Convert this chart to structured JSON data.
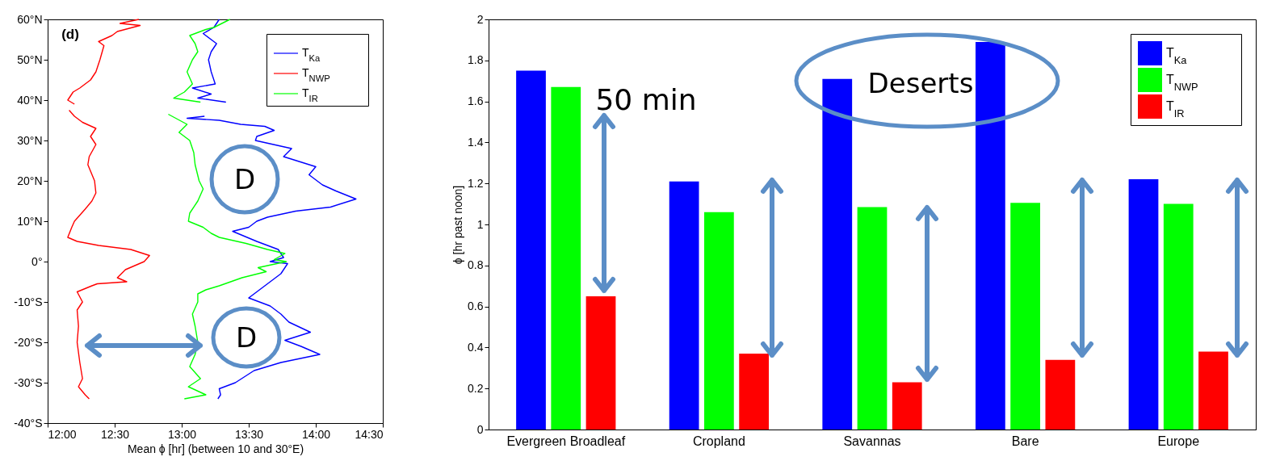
{
  "chart_data": [
    {
      "type": "line",
      "xlabel": "Mean ϕ [hr] (between 10 and 30°E)",
      "annotations": [
        "(d)",
        "D",
        "D"
      ],
      "xlim": [
        12,
        14.5
      ],
      "xticks": [
        {
          "value": 12,
          "label": "12:00"
        },
        {
          "value": 12.5,
          "label": "12:30"
        },
        {
          "value": 13,
          "label": "13:00"
        },
        {
          "value": 13.5,
          "label": "13:30"
        },
        {
          "value": 14,
          "label": "14:00"
        },
        {
          "value": 14.5,
          "label": "14:30"
        }
      ],
      "ylim": [
        -40,
        60
      ],
      "yticks": [
        {
          "value": -40,
          "label": "-40°S"
        },
        {
          "value": -30,
          "label": "-30°S"
        },
        {
          "value": -20,
          "label": "-20°S"
        },
        {
          "value": -10,
          "label": "-10°S"
        },
        {
          "value": 0,
          "label": "0°"
        },
        {
          "value": 10,
          "label": "10°N"
        },
        {
          "value": 20,
          "label": "20°N"
        },
        {
          "value": 30,
          "label": "30°N"
        },
        {
          "value": 40,
          "label": "40°N"
        },
        {
          "value": 50,
          "label": "50°N"
        },
        {
          "value": 60,
          "label": "60°N"
        }
      ],
      "legend": "top right",
      "grid": false,
      "series": [
        {
          "name": "T$_{Ka}$",
          "color": "#0000ff",
          "x": [
            13.28,
            13.24,
            13.16,
            13.26,
            13.22,
            13.2,
            13.22,
            13.25,
            13.08,
            13.22,
            13.12,
            13.33,
            13.25,
            13.17,
            13.04,
            13.28,
            13.44,
            13.62,
            13.69,
            13.56,
            13.55,
            13.82,
            13.76,
            14.0,
            13.95,
            14.05,
            14.15,
            14.3,
            14.11,
            13.85,
            13.64,
            13.56,
            13.5,
            13.38,
            13.56,
            13.72,
            13.76,
            13.66,
            13.79,
            13.74,
            13.62,
            13.56,
            13.5,
            13.66,
            13.74,
            13.8,
            13.96,
            13.77,
            13.89,
            14.03,
            13.74,
            13.54,
            13.4,
            13.28,
            13.29,
            13.27
          ],
          "values": [
            60,
            58,
            56.5,
            54,
            52,
            50,
            47,
            44,
            43,
            41.5,
            40.5,
            39.5,
            null,
            36,
            35.5,
            35,
            34,
            33.5,
            32.5,
            31,
            30,
            28,
            26,
            23.5,
            21.5,
            19,
            17.5,
            15.5,
            13.5,
            12.5,
            11,
            10,
            8.5,
            7.5,
            5,
            3,
            1,
            0,
            -0.5,
            -3,
            -6,
            -7.5,
            -9,
            -11,
            -13,
            -15,
            -17.5,
            -19.5,
            -21,
            -23,
            -25,
            -27,
            -30,
            -31.5,
            -33,
            -34
          ]
        },
        {
          "name": "T$_{NWP}$",
          "color": "#ff0000",
          "x": [
            12.68,
            12.54,
            12.69,
            12.52,
            12.48,
            12.38,
            12.42,
            12.39,
            12.36,
            12.32,
            12.24,
            12.19,
            12.15,
            12.2,
            12.18,
            12.16,
            12.2,
            12.26,
            12.36,
            12.32,
            12.36,
            12.31,
            12.3,
            12.35,
            12.36,
            12.33,
            12.28,
            12.2,
            12.18,
            12.15,
            12.22,
            12.38,
            12.62,
            12.76,
            12.72,
            12.58,
            12.52,
            12.59,
            12.37,
            12.33,
            12.22,
            12.26,
            12.22,
            12.23,
            12.22,
            12.24,
            12.26,
            12.23,
            12.28,
            12.31
          ],
          "values": [
            60,
            59,
            58.5,
            57,
            56,
            54.5,
            53.5,
            50,
            47,
            45,
            43,
            42,
            40,
            39,
            null,
            37.5,
            36,
            34.5,
            33,
            31,
            29,
            26,
            24,
            20,
            17,
            15,
            13,
            10,
            8.5,
            6,
            5,
            4,
            3,
            1.5,
            0,
            -2,
            -4,
            -5,
            -5.5,
            -6,
            -7.5,
            -10,
            -12,
            -16,
            -20,
            -25,
            -29,
            -31,
            -33,
            -34
          ]
        },
        {
          "name": "T$_{IR}$",
          "color": "#00ff00",
          "x": [
            13.36,
            13.24,
            13.18,
            13.06,
            13.1,
            13.12,
            13.08,
            13.04,
            13.08,
            13.02,
            12.94,
            13.14,
            13.0,
            12.9,
            13.04,
            12.98,
            13.06,
            13.09,
            13.1,
            13.13,
            13.16,
            13.12,
            13.06,
            13.05,
            13.16,
            13.22,
            13.28,
            13.48,
            13.64,
            13.77,
            13.69,
            13.78,
            13.57,
            13.63,
            13.45,
            13.28,
            13.18,
            13.12,
            13.12,
            13.08,
            13.1,
            13.12,
            13.1,
            13.06,
            13.14,
            13.05,
            13.18,
            13.02
          ],
          "values": [
            60,
            58,
            57.5,
            56,
            54,
            52,
            50,
            47,
            44,
            42,
            40.5,
            39.5,
            null,
            36.5,
            34,
            32,
            30,
            27,
            24,
            20,
            18,
            15,
            12,
            10,
            8.5,
            7,
            6,
            4.5,
            3,
            2,
            0.5,
            0,
            -1.5,
            -2.5,
            -4,
            -6,
            -7,
            -8,
            -10,
            -13,
            -16,
            -20,
            -23,
            -26,
            -29,
            -31,
            -33,
            -34
          ]
        }
      ]
    },
    {
      "type": "bar",
      "categories": [
        "Evergreen Broadleaf",
        "Cropland",
        "Savannas",
        "Bare",
        "Europe"
      ],
      "ylabel": "ϕ [hr past noon]",
      "annotations": [
        "50 min",
        "Deserts"
      ],
      "ylim": [
        0,
        2
      ],
      "yticks": [
        0,
        0.2,
        0.4,
        0.6,
        0.8,
        1,
        1.2,
        1.4,
        1.6,
        1.8,
        2
      ],
      "legend": "top right",
      "grid": false,
      "series": [
        {
          "name": "T$_{Ka}$",
          "color": "#0000ff",
          "values": [
            1.75,
            1.21,
            1.71,
            1.89,
            1.22
          ]
        },
        {
          "name": "T$_{NWP}$",
          "color": "#00ff00",
          "values": [
            1.67,
            1.06,
            1.085,
            1.105,
            1.1
          ]
        },
        {
          "name": "T$_{IR}$",
          "color": "#ff0000",
          "values": [
            0.65,
            0.37,
            0.23,
            0.34,
            0.38
          ]
        }
      ]
    }
  ]
}
